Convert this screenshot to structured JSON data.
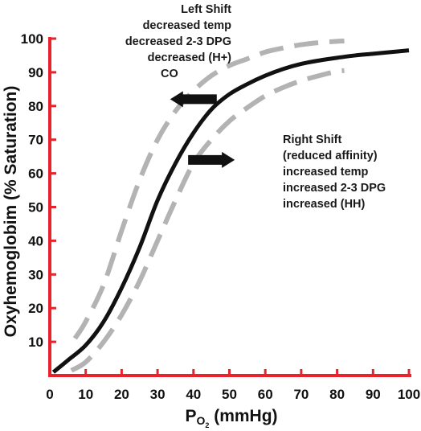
{
  "chart_data": {
    "type": "line",
    "xlabel": "P",
    "xlabel_subscript": "O",
    "xlabel_subscript2": "2",
    "xlabel_suffix": " (mmHg)",
    "ylabel": "Oxyhemoglobim (% Saturation)",
    "xlim": [
      0,
      100
    ],
    "ylim": [
      0,
      100
    ],
    "xticks": [
      0,
      10,
      20,
      30,
      40,
      50,
      60,
      70,
      80,
      90,
      100
    ],
    "yticks": [
      10,
      20,
      30,
      40,
      50,
      60,
      70,
      80,
      90,
      100
    ],
    "grid": false,
    "axis_color": "#e8232b",
    "series": [
      {
        "style": "solid",
        "color": "#111111",
        "x": [
          1,
          5,
          10,
          15,
          20,
          25,
          30,
          35,
          40,
          45,
          50,
          55,
          60,
          65,
          70,
          75,
          80,
          85,
          90,
          95,
          100
        ],
        "y": [
          1,
          4.5,
          9,
          16,
          26,
          38,
          52,
          63,
          72,
          79,
          83.5,
          86.5,
          89,
          91,
          92.5,
          93.5,
          94.3,
          95,
          95.5,
          96,
          96.5
        ]
      },
      {
        "style": "dashed",
        "color": "#b3b3b3",
        "x": [
          7,
          10,
          15,
          20,
          25,
          30,
          35,
          40,
          45,
          50,
          55,
          60,
          65,
          70,
          75,
          80,
          82
        ],
        "y": [
          11,
          16,
          27,
          43,
          58,
          70,
          78.5,
          84.5,
          89,
          92,
          94,
          96,
          97.2,
          98.2,
          98.8,
          99.2,
          99.3
        ]
      },
      {
        "style": "dashed",
        "color": "#b3b3b3",
        "x": [
          6,
          10,
          15,
          20,
          25,
          30,
          35,
          40,
          45,
          50,
          55,
          60,
          65,
          70,
          75,
          80,
          82
        ],
        "y": [
          1.5,
          4,
          10,
          18,
          28,
          40,
          52,
          63,
          70,
          75.5,
          79.5,
          83,
          85.5,
          87.5,
          89,
          90.3,
          90.5
        ]
      }
    ],
    "annotations": {
      "left_shift": [
        "Left Shift",
        "decreased temp",
        "decreased 2-3 DPG",
        "decreased (H+)",
        "CO"
      ],
      "right_shift": [
        "Right Shift",
        "(reduced affinity)",
        "increased temp",
        "increased 2-3 DPG",
        "increased (HH)"
      ]
    },
    "arrows": [
      {
        "name": "left-shift-arrow",
        "direction": "left",
        "at": [
          40,
          82
        ]
      },
      {
        "name": "right-shift-arrow",
        "direction": "right",
        "at": [
          45,
          64
        ]
      }
    ]
  }
}
